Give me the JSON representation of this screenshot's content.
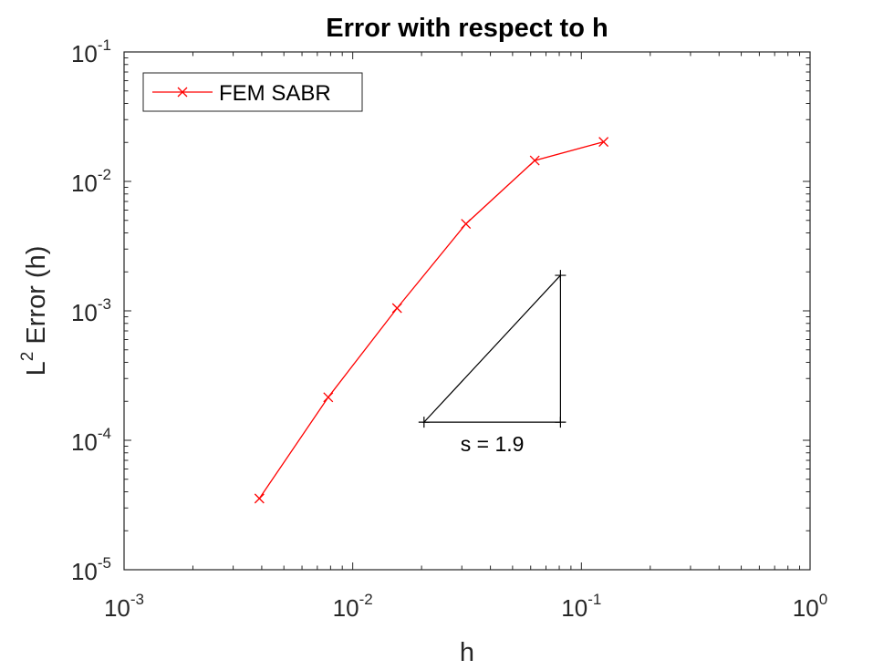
{
  "chart_data": {
    "type": "line",
    "title": "Error with respect to h",
    "xlabel": "h",
    "ylabel_main": "L",
    "ylabel_sup": "2",
    "ylabel_rest": " Error (h)",
    "xscale": "log",
    "yscale": "log",
    "xlim": [
      0.001,
      1
    ],
    "ylim": [
      1e-05,
      0.1
    ],
    "x_ticks": [
      {
        "value": 0.001,
        "base": "10",
        "exp": "-3"
      },
      {
        "value": 0.01,
        "base": "10",
        "exp": "-2"
      },
      {
        "value": 0.1,
        "base": "10",
        "exp": "-1"
      },
      {
        "value": 1,
        "base": "10",
        "exp": "0"
      }
    ],
    "y_ticks": [
      {
        "value": 1e-05,
        "base": "10",
        "exp": "-5"
      },
      {
        "value": 0.0001,
        "base": "10",
        "exp": "-4"
      },
      {
        "value": 0.001,
        "base": "10",
        "exp": "-3"
      },
      {
        "value": 0.01,
        "base": "10",
        "exp": "-2"
      },
      {
        "value": 0.1,
        "base": "10",
        "exp": "-1"
      }
    ],
    "grid": false,
    "legend_position": "top-left",
    "series": [
      {
        "name": "FEM SABR",
        "color": "#ff0000",
        "marker": "x",
        "x": [
          0.00390625,
          0.0078125,
          0.015625,
          0.03125,
          0.0625,
          0.125
        ],
        "y": [
          3.55e-05,
          0.000215,
          0.00105,
          0.0047,
          0.0145,
          0.0202
        ]
      }
    ],
    "slope_triangle": {
      "label": "s = 1.9",
      "x": [
        0.0205,
        0.081
      ],
      "y": [
        0.000138,
        0.00188
      ]
    }
  }
}
